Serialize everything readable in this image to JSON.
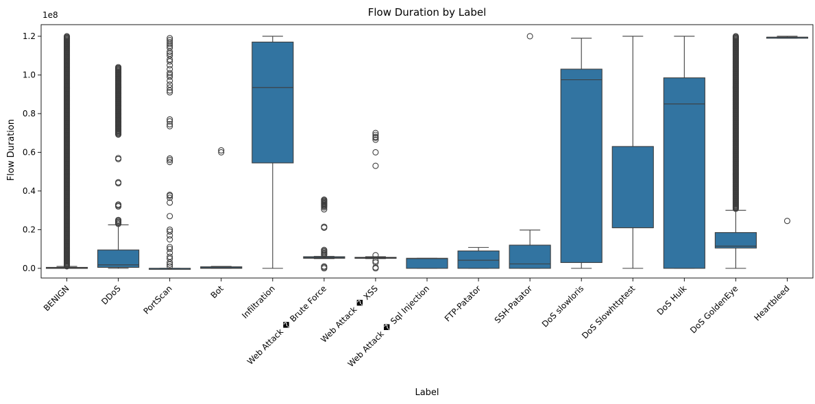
{
  "chart_data": {
    "type": "box",
    "title": "Flow Duration by Label",
    "xlabel": "Label",
    "ylabel": "Flow Duration",
    "y_scale_label": "1e8",
    "ylim": [
      -5000000,
      126000000
    ],
    "yticks": [
      0,
      20000000,
      40000000,
      60000000,
      80000000,
      100000000,
      120000000
    ],
    "ytick_labels": [
      "0.0",
      "0.2",
      "0.4",
      "0.6",
      "0.8",
      "1.0",
      "1.2"
    ],
    "grid": false,
    "color": "#3274a1",
    "categories": [
      "BENIGN",
      "DDoS",
      "PortScan",
      "Bot",
      "Infiltration",
      "Web Attack � Brute Force",
      "Web Attack � XSS",
      "Web Attack � Sql Injection",
      "FTP-Patator",
      "SSH-Patator",
      "DoS slowloris",
      "DoS Slowhttptest",
      "DoS Hulk",
      "DoS GoldenEye",
      "Heartbleed"
    ],
    "boxes": [
      {
        "label": "BENIGN",
        "whisker_low": 0,
        "q1": 0,
        "median": 100000,
        "q3": 500000,
        "whisker_high": 1000000,
        "outliers": [],
        "outlier_bands": [
          [
            1000000,
            120000000
          ]
        ]
      },
      {
        "label": "DDoS",
        "whisker_low": 0,
        "q1": 500000,
        "median": 1800000,
        "q3": 9500000,
        "whisker_high": 22500000,
        "outliers": [
          23000000,
          23500000,
          24000000,
          24500000,
          25000000,
          32000000,
          32500000,
          33000000,
          44000000,
          44500000,
          56500000,
          57000000
        ],
        "outlier_bands": [
          [
            69000000,
            104000000
          ]
        ]
      },
      {
        "label": "PortScan",
        "whisker_low": 0,
        "q1": 0,
        "median": 0,
        "q3": 0,
        "whisker_high": 0,
        "outliers": [
          1000000,
          2000000,
          3000000,
          5000000,
          6000000,
          8000000,
          10000000,
          11000000,
          15000000,
          17000000,
          19000000,
          20000000,
          27000000,
          34000000,
          36500000,
          37500000,
          38000000,
          55000000,
          56000000,
          56800000,
          73500000,
          74500000,
          76000000,
          77000000,
          91000000,
          92000000,
          93500000,
          95000000,
          97000000,
          99000000,
          100000000,
          101000000,
          103000000,
          105000000,
          107000000,
          108000000,
          110000000,
          111000000,
          112000000,
          114000000,
          115000000,
          116000000,
          117000000,
          118000000,
          119000000
        ],
        "outlier_bands": []
      },
      {
        "label": "Bot",
        "whisker_low": 0,
        "q1": 0,
        "median": 300000,
        "q3": 800000,
        "whisker_high": 1000000,
        "outliers": [
          60000000,
          61000000
        ],
        "outlier_bands": []
      },
      {
        "label": "Infiltration",
        "whisker_low": 0,
        "q1": 54500000,
        "median": 93500000,
        "q3": 117000000,
        "whisker_high": 120000000,
        "outliers": [],
        "outlier_bands": []
      },
      {
        "label": "Web Attack � Brute Force",
        "whisker_low": 5000000,
        "q1": 5200000,
        "median": 5500000,
        "q3": 6000000,
        "whisker_high": 6200000,
        "outliers": [
          0,
          500000,
          1000000,
          7000000,
          7500000,
          8000000,
          8500000,
          9000000,
          9500000,
          21000000,
          21500000,
          30500000,
          31500000
        ],
        "outlier_bands": [
          [
            32000000,
            35500000
          ]
        ]
      },
      {
        "label": "Web Attack � XSS",
        "whisker_low": 5000000,
        "q1": 5200000,
        "median": 5400000,
        "q3": 5700000,
        "whisker_high": 6000000,
        "outliers": [
          0,
          500000,
          3000000,
          3800000,
          6800000,
          53000000,
          60000000,
          66500000,
          67500000,
          68000000,
          69000000,
          70000000
        ],
        "outlier_bands": []
      },
      {
        "label": "Web Attack � Sql Injection",
        "whisker_low": 0,
        "q1": 0,
        "median": 5000000,
        "q3": 5200000,
        "whisker_high": 5200000,
        "outliers": [],
        "outlier_bands": []
      },
      {
        "label": "FTP-Patator",
        "whisker_low": 0,
        "q1": 0,
        "median": 4200000,
        "q3": 9000000,
        "whisker_high": 10800000,
        "outliers": [],
        "outlier_bands": []
      },
      {
        "label": "SSH-Patator",
        "whisker_low": 0,
        "q1": 0,
        "median": 2300000,
        "q3": 12000000,
        "whisker_high": 19800000,
        "outliers": [
          120000000
        ],
        "outlier_bands": []
      },
      {
        "label": "DoS slowloris",
        "whisker_low": 0,
        "q1": 3000000,
        "median": 97500000,
        "q3": 103000000,
        "whisker_high": 119000000,
        "outliers": [],
        "outlier_bands": []
      },
      {
        "label": "DoS Slowhttptest",
        "whisker_low": 0,
        "q1": 21000000,
        "median": 21000000,
        "q3": 63000000,
        "whisker_high": 120000000,
        "outliers": [],
        "outlier_bands": []
      },
      {
        "label": "DoS Hulk",
        "whisker_low": 0,
        "q1": 0,
        "median": 85000000,
        "q3": 98500000,
        "whisker_high": 120000000,
        "outliers": [],
        "outlier_bands": []
      },
      {
        "label": "DoS GoldenEye",
        "whisker_low": 0,
        "q1": 10500000,
        "median": 11500000,
        "q3": 18500000,
        "whisker_high": 30000000,
        "outliers": [],
        "outlier_bands": [
          [
            30500000,
            120000000
          ]
        ]
      },
      {
        "label": "Heartbleed",
        "whisker_low": 119000000,
        "q1": 119000000,
        "median": 119500000,
        "q3": 119500000,
        "whisker_high": 120000000,
        "outliers": [
          24500000
        ],
        "outlier_bands": []
      }
    ]
  }
}
